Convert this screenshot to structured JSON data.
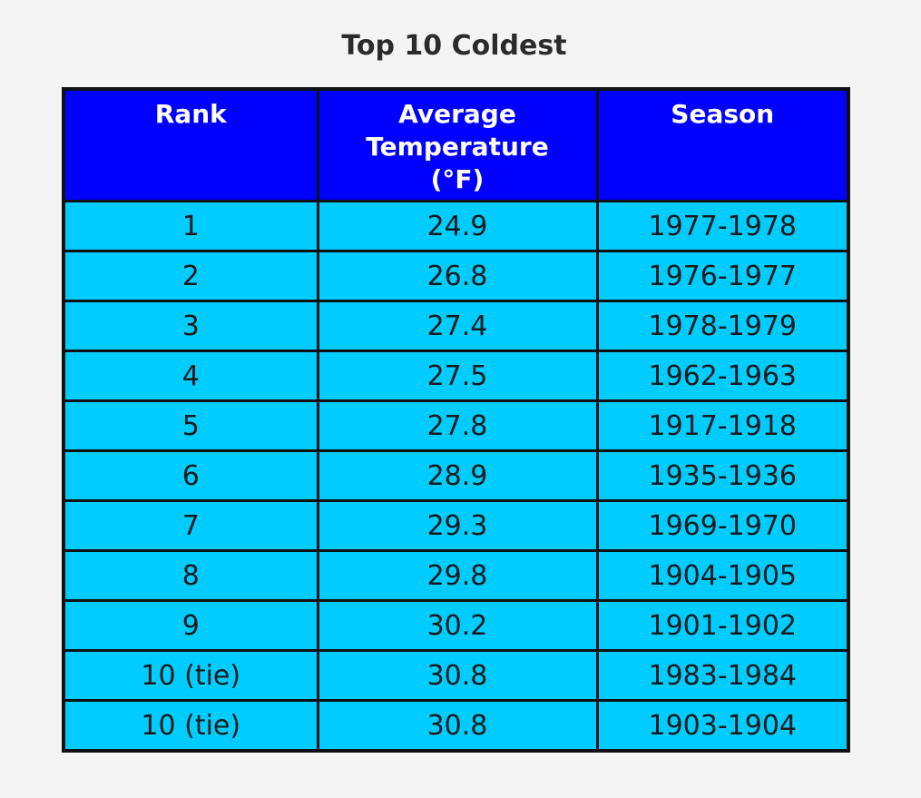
{
  "title": "Top 10 Coldest",
  "colors": {
    "page_background": "#f4f4f4",
    "header_background": "#0000ff",
    "header_text": "#ffffff",
    "cell_background": "#00ccff",
    "cell_text": "#1a1a1a",
    "border": "#111111",
    "title_text": "#2b2b2b"
  },
  "table": {
    "headers": {
      "rank": "Rank",
      "avg_temp": "Average\nTemperature\n(°F)",
      "season": "Season"
    },
    "rows": [
      {
        "rank": "1",
        "avg_temp": "24.9",
        "season": "1977-1978"
      },
      {
        "rank": "2",
        "avg_temp": "26.8",
        "season": "1976-1977"
      },
      {
        "rank": "3",
        "avg_temp": "27.4",
        "season": "1978-1979"
      },
      {
        "rank": "4",
        "avg_temp": "27.5",
        "season": "1962-1963"
      },
      {
        "rank": "5",
        "avg_temp": "27.8",
        "season": "1917-1918"
      },
      {
        "rank": "6",
        "avg_temp": "28.9",
        "season": "1935-1936"
      },
      {
        "rank": "7",
        "avg_temp": "29.3",
        "season": "1969-1970"
      },
      {
        "rank": "8",
        "avg_temp": "29.8",
        "season": "1904-1905"
      },
      {
        "rank": "9",
        "avg_temp": "30.2",
        "season": "1901-1902"
      },
      {
        "rank": "10 (tie)",
        "avg_temp": "30.8",
        "season": "1983-1984"
      },
      {
        "rank": "10 (tie)",
        "avg_temp": "30.8",
        "season": "1903-1904"
      }
    ]
  },
  "chart_data": {
    "type": "table",
    "title": "Top 10 Coldest",
    "columns": [
      "Rank",
      "Average Temperature (°F)",
      "Season"
    ],
    "rows": [
      [
        "1",
        24.9,
        "1977-1978"
      ],
      [
        "2",
        26.8,
        "1976-1977"
      ],
      [
        "3",
        27.4,
        "1978-1979"
      ],
      [
        "4",
        27.5,
        "1962-1963"
      ],
      [
        "5",
        27.8,
        "1917-1918"
      ],
      [
        "6",
        28.9,
        "1935-1936"
      ],
      [
        "7",
        29.3,
        "1969-1970"
      ],
      [
        "8",
        29.8,
        "1904-1905"
      ],
      [
        "9",
        30.2,
        "1901-1902"
      ],
      [
        "10 (tie)",
        30.8,
        "1983-1984"
      ],
      [
        "10 (tie)",
        30.8,
        "1903-1904"
      ]
    ]
  }
}
